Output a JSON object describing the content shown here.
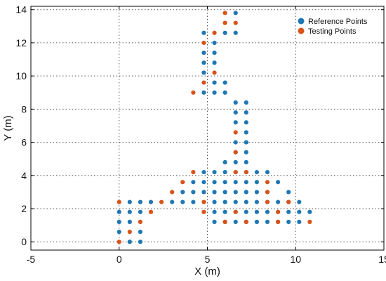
{
  "chart_data": {
    "type": "scatter",
    "xlabel": "X (m)",
    "ylabel": "Y (m)",
    "xlim": [
      -5,
      15
    ],
    "ylim": [
      -0.5,
      14.2
    ],
    "xticks": [
      -5,
      0,
      5,
      10,
      15
    ],
    "yticks": [
      0,
      2,
      4,
      6,
      8,
      10,
      12,
      14
    ],
    "grid": true,
    "legend_position": "top-right",
    "series": [
      {
        "name": "Reference Points",
        "color": "#1f77b4",
        "points": [
          [
            6.6,
            13.8
          ],
          [
            6.0,
            12.6
          ],
          [
            6.6,
            12.6
          ],
          [
            4.8,
            12.6
          ],
          [
            5.4,
            12.0
          ],
          [
            5.4,
            11.4
          ],
          [
            4.8,
            11.4
          ],
          [
            5.4,
            10.8
          ],
          [
            4.8,
            10.8
          ],
          [
            4.8,
            10.2
          ],
          [
            5.4,
            9.6
          ],
          [
            6.0,
            9.6
          ],
          [
            4.8,
            9.0
          ],
          [
            5.4,
            9.0
          ],
          [
            6.0,
            9.0
          ],
          [
            6.6,
            8.4
          ],
          [
            7.2,
            8.4
          ],
          [
            6.6,
            7.8
          ],
          [
            7.2,
            7.8
          ],
          [
            6.6,
            7.2
          ],
          [
            7.2,
            7.2
          ],
          [
            7.2,
            6.6
          ],
          [
            6.6,
            6.0
          ],
          [
            7.2,
            6.0
          ],
          [
            6.6,
            5.4
          ],
          [
            7.2,
            5.4
          ],
          [
            6.0,
            4.8
          ],
          [
            6.6,
            4.8
          ],
          [
            7.2,
            4.8
          ],
          [
            4.8,
            4.2
          ],
          [
            5.4,
            4.2
          ],
          [
            6.0,
            4.2
          ],
          [
            6.6,
            4.2
          ],
          [
            7.2,
            4.2
          ],
          [
            7.8,
            4.2
          ],
          [
            8.4,
            4.2
          ],
          [
            4.2,
            3.6
          ],
          [
            4.8,
            3.6
          ],
          [
            5.4,
            3.6
          ],
          [
            6.0,
            3.6
          ],
          [
            6.6,
            3.6
          ],
          [
            7.2,
            3.6
          ],
          [
            7.8,
            3.6
          ],
          [
            9.0,
            3.6
          ],
          [
            3.6,
            3.0
          ],
          [
            4.2,
            3.0
          ],
          [
            4.8,
            3.0
          ],
          [
            5.4,
            3.0
          ],
          [
            6.0,
            3.0
          ],
          [
            6.6,
            3.0
          ],
          [
            7.2,
            3.0
          ],
          [
            7.8,
            3.0
          ],
          [
            8.4,
            3.0
          ],
          [
            9.6,
            3.0
          ],
          [
            3.0,
            2.4
          ],
          [
            3.6,
            2.4
          ],
          [
            4.2,
            2.4
          ],
          [
            5.4,
            2.4
          ],
          [
            6.0,
            2.4
          ],
          [
            6.6,
            2.4
          ],
          [
            7.2,
            2.4
          ],
          [
            7.8,
            2.4
          ],
          [
            8.4,
            2.4
          ],
          [
            9.0,
            2.4
          ],
          [
            9.6,
            2.4
          ],
          [
            10.2,
            2.4
          ],
          [
            5.4,
            1.8
          ],
          [
            6.0,
            1.8
          ],
          [
            6.6,
            1.8
          ],
          [
            7.2,
            1.8
          ],
          [
            7.8,
            1.8
          ],
          [
            8.4,
            1.8
          ],
          [
            9.0,
            1.8
          ],
          [
            9.6,
            1.8
          ],
          [
            10.2,
            1.8
          ],
          [
            10.8,
            1.8
          ],
          [
            5.4,
            1.2
          ],
          [
            6.0,
            1.2
          ],
          [
            6.6,
            1.2
          ],
          [
            7.2,
            1.2
          ],
          [
            7.8,
            1.2
          ],
          [
            8.4,
            1.2
          ],
          [
            9.0,
            1.2
          ],
          [
            9.6,
            1.2
          ],
          [
            10.2,
            1.2
          ],
          [
            0.6,
            2.4
          ],
          [
            1.2,
            2.4
          ],
          [
            1.8,
            2.4
          ],
          [
            0.0,
            1.8
          ],
          [
            0.6,
            1.8
          ],
          [
            1.2,
            1.8
          ],
          [
            0.0,
            1.2
          ],
          [
            0.6,
            1.2
          ],
          [
            0.0,
            0.6
          ],
          [
            1.2,
            0.6
          ],
          [
            0.6,
            0.0
          ],
          [
            1.2,
            0.0
          ]
        ]
      },
      {
        "name": "Testing Points",
        "color": "#d95319",
        "points": [
          [
            6.0,
            13.8
          ],
          [
            6.0,
            13.2
          ],
          [
            6.6,
            13.2
          ],
          [
            5.4,
            12.6
          ],
          [
            4.8,
            12.0
          ],
          [
            5.4,
            10.2
          ],
          [
            4.8,
            9.6
          ],
          [
            4.2,
            9.0
          ],
          [
            6.6,
            6.6
          ],
          [
            6.6,
            5.4
          ],
          [
            4.2,
            4.2
          ],
          [
            6.6,
            4.2
          ],
          [
            7.2,
            4.2
          ],
          [
            3.6,
            3.6
          ],
          [
            8.4,
            3.6
          ],
          [
            3.0,
            3.0
          ],
          [
            8.4,
            3.0
          ],
          [
            2.4,
            2.4
          ],
          [
            4.8,
            2.4
          ],
          [
            8.4,
            2.4
          ],
          [
            9.6,
            2.4
          ],
          [
            1.8,
            1.8
          ],
          [
            4.8,
            1.8
          ],
          [
            6.6,
            1.8
          ],
          [
            9.0,
            1.8
          ],
          [
            6.0,
            1.2
          ],
          [
            7.2,
            1.2
          ],
          [
            9.0,
            1.2
          ],
          [
            10.8,
            1.2
          ],
          [
            0.0,
            2.4
          ],
          [
            1.2,
            1.2
          ],
          [
            0.6,
            0.6
          ],
          [
            0.0,
            0.0
          ]
        ]
      }
    ]
  }
}
